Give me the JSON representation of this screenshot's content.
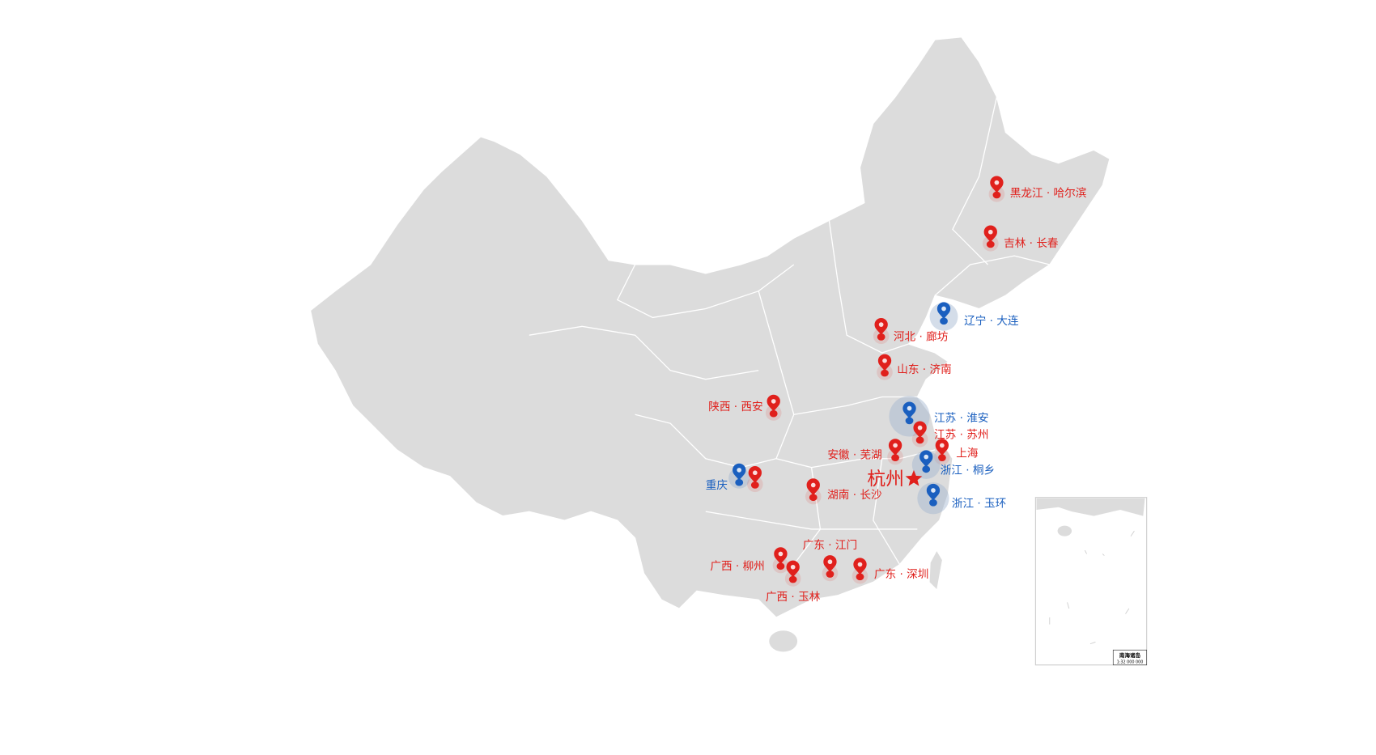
{
  "colors": {
    "land": "#dcdcdc",
    "border": "#ffffff",
    "red": "#e0201c",
    "blue": "#1a5fbf"
  },
  "headquarters": {
    "label": "杭州",
    "icon": "star-icon",
    "color": "#e0201c"
  },
  "markers": [
    {
      "label": "黑龙江 · 哈尔滨",
      "color": "red"
    },
    {
      "label": "吉林 · 长春",
      "color": "red"
    },
    {
      "label": "辽宁 · 大连",
      "color": "blue"
    },
    {
      "label": "河北 · 廊坊",
      "color": "red"
    },
    {
      "label": "山东 · 济南",
      "color": "red"
    },
    {
      "label": "陕西 · 西安",
      "color": "red"
    },
    {
      "label": "江苏 · 淮安",
      "color": "blue"
    },
    {
      "label": "江苏 · 苏州",
      "color": "red"
    },
    {
      "label": "安徽 · 芜湖",
      "color": "red"
    },
    {
      "label": "上海",
      "color": "red"
    },
    {
      "label": "浙江 · 桐乡",
      "color": "blue"
    },
    {
      "label": "浙江 · 玉环",
      "color": "blue"
    },
    {
      "label": "重庆",
      "color": "blue"
    },
    {
      "label": "",
      "color": "red"
    },
    {
      "label": "湖南 · 长沙",
      "color": "red"
    },
    {
      "label": "广东 · 江门",
      "color": "red"
    },
    {
      "label": "广西 · 柳州",
      "color": "red"
    },
    {
      "label": "广西 · 玉林",
      "color": "red"
    },
    {
      "label": "广东 · 深圳",
      "color": "red"
    }
  ],
  "inset": {
    "title": "南海诸岛",
    "scale": "1:32 000 000"
  }
}
